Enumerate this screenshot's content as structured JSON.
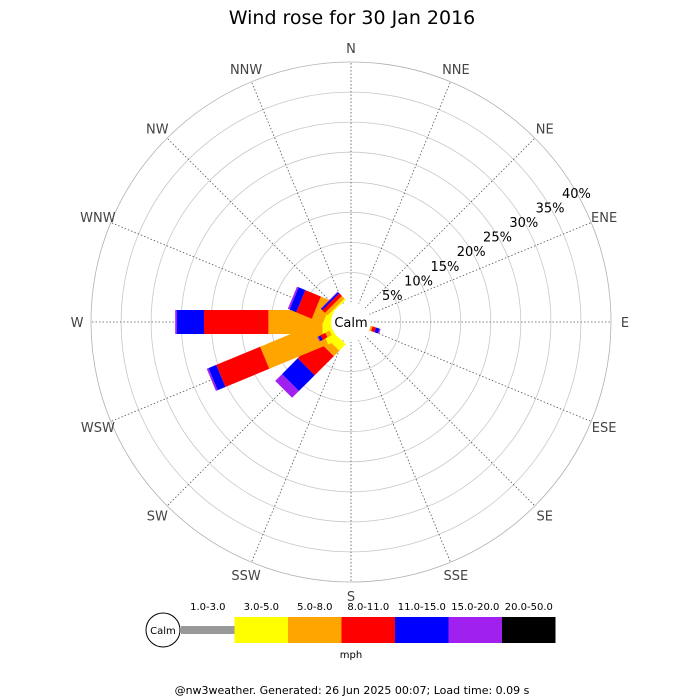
{
  "chart_data": {
    "type": "wind_rose",
    "title": "Wind rose for 30 Jan 2016",
    "directions": [
      "N",
      "NNE",
      "NE",
      "ENE",
      "E",
      "ESE",
      "SE",
      "SSE",
      "S",
      "SSW",
      "SW",
      "WSW",
      "W",
      "WNW",
      "NW",
      "NNW"
    ],
    "radial_axis": {
      "ticks": [
        "5%",
        "10%",
        "15%",
        "20%",
        "25%",
        "30%",
        "35%",
        "40%"
      ],
      "tick_values": [
        5,
        10,
        15,
        20,
        25,
        30,
        35,
        40
      ],
      "max": 40,
      "calm_radius_pct": 3
    },
    "calm_label": "Calm",
    "unit_label": "mph",
    "speed_bins": [
      {
        "label": "1.0-3.0",
        "color": "#999999"
      },
      {
        "label": "3.0-5.0",
        "color": "#ffff00"
      },
      {
        "label": "5.0-8.0",
        "color": "#ffa500"
      },
      {
        "label": "8.0-11.0",
        "color": "#ff0000"
      },
      {
        "label": "11.0-15.0",
        "color": "#0000ff"
      },
      {
        "label": "15.0-20.0",
        "color": "#a020f0"
      },
      {
        "label": "20.0-50.0",
        "color": "#000000"
      }
    ],
    "series": [
      {
        "direction": "N",
        "values": [
          0,
          0,
          0,
          0,
          0,
          0,
          0
        ]
      },
      {
        "direction": "NNE",
        "values": [
          0,
          0,
          0,
          0,
          0,
          0,
          0
        ]
      },
      {
        "direction": "NE",
        "values": [
          0,
          0,
          0,
          0,
          0,
          0,
          0
        ]
      },
      {
        "direction": "ENE",
        "values": [
          0,
          0,
          0,
          0,
          0,
          0,
          0
        ]
      },
      {
        "direction": "E",
        "values": [
          0,
          0,
          0,
          0,
          0,
          0,
          0
        ]
      },
      {
        "direction": "ESE",
        "values": [
          0,
          0,
          0,
          0,
          0,
          0,
          0
        ]
      },
      {
        "direction": "SE",
        "values": [
          0,
          0,
          0,
          0,
          0,
          0,
          0
        ]
      },
      {
        "direction": "SSE",
        "values": [
          0,
          0,
          0,
          0,
          0,
          0,
          0
        ]
      },
      {
        "direction": "S",
        "values": [
          0,
          0,
          0,
          0,
          0,
          0,
          0
        ]
      },
      {
        "direction": "SSW",
        "values": [
          0,
          0,
          0,
          0,
          0,
          0,
          0
        ]
      },
      {
        "direction": "SW",
        "values": [
          0,
          1.5,
          1.3,
          4.5,
          3.7,
          1.6,
          0
        ]
      },
      {
        "direction": "WSW",
        "values": [
          0,
          1.7,
          10.6,
          7.9,
          1.4,
          0.3,
          0
        ]
      },
      {
        "direction": "W",
        "values": [
          0,
          1.5,
          9.0,
          10.7,
          4.5,
          0.3,
          0
        ]
      },
      {
        "direction": "WNW",
        "values": [
          0,
          1.0,
          2.0,
          2.8,
          1.2,
          0.3,
          0
        ]
      },
      {
        "direction": "NW",
        "values": [
          0,
          0.3,
          0.6,
          0.6,
          0.3,
          0.1,
          0
        ]
      },
      {
        "direction": "NNW",
        "values": [
          0,
          0,
          0,
          0,
          0,
          0,
          0
        ]
      }
    ],
    "minor_series": [
      {
        "angle_deg": 242,
        "values": [
          0,
          0.6,
          0.8,
          0.9,
          0.4,
          0.2,
          0
        ]
      },
      {
        "angle_deg": 108,
        "values": [
          0,
          0,
          0.4,
          0.6,
          0.6,
          0.2,
          0
        ]
      }
    ],
    "footer": "@nw3weather. Generated: 26 Jun 2025 00:07; Load time: 0.09 s"
  }
}
